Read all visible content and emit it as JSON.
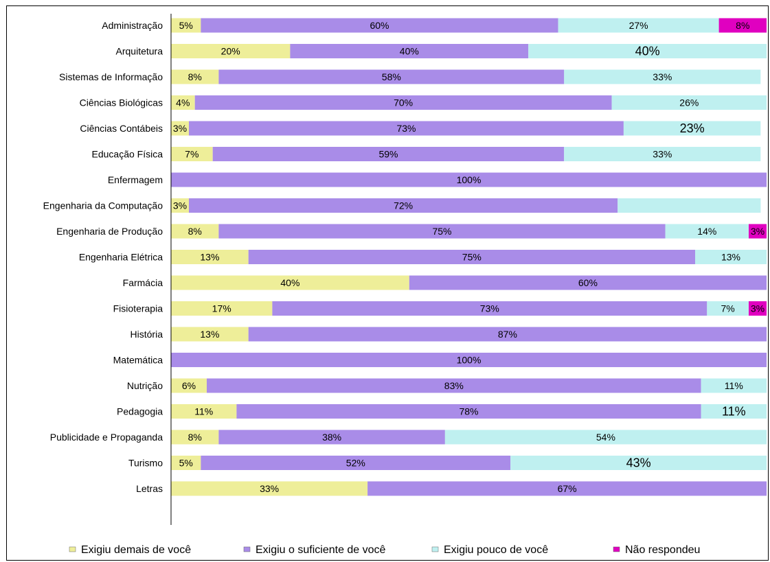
{
  "chart_data": {
    "type": "bar",
    "orientation": "horizontal",
    "stacked": true,
    "title": "",
    "xlabel": "",
    "ylabel": "",
    "xlim": [
      0,
      100
    ],
    "grid": false,
    "legend_position": "bottom",
    "categories": [
      "Administração",
      "Arquitetura",
      "Sistemas de Informação",
      "Ciências Biológicas",
      "Ciências Contábeis",
      "Educação Física",
      "Enfermagem",
      "Engenharia da Computação",
      "Engenharia de Produção",
      "Engenharia Elétrica",
      "Farmácia",
      "Fisioterapia",
      "História",
      "Matemática",
      "Nutrição",
      "Pedagogia",
      "Publicidade e Propaganda",
      "Turismo",
      "Letras"
    ],
    "series": [
      {
        "name": "Exigiu demais de você",
        "color": "#EEEE99",
        "values": [
          5,
          20,
          8,
          4,
          3,
          7,
          0,
          3,
          8,
          13,
          40,
          17,
          13,
          0,
          6,
          11,
          8,
          5,
          33
        ],
        "labels": [
          "5%",
          "20%",
          "8%",
          "4%",
          "3%",
          "7%",
          "",
          "3%",
          "8%",
          "13%",
          "40%",
          "17%",
          "13%",
          "",
          "6%",
          "11%",
          "8%",
          "5%",
          "33%"
        ]
      },
      {
        "name": "Exigiu o suficiente de você",
        "color": "#A98CE8",
        "values": [
          60,
          40,
          58,
          70,
          73,
          59,
          100,
          72,
          75,
          75,
          60,
          73,
          87,
          100,
          83,
          78,
          38,
          52,
          67
        ],
        "labels": [
          "60%",
          "40%",
          "58%",
          "70%",
          "73%",
          "59%",
          "100%",
          "72%",
          "75%",
          "75%",
          "60%",
          "73%",
          "87%",
          "100%",
          "83%",
          "78%",
          "38%",
          "52%",
          "67%"
        ]
      },
      {
        "name": "Exigiu pouco de você",
        "color": "#BFF0F0",
        "values": [
          27,
          40,
          33,
          26,
          23,
          33,
          0,
          24,
          14,
          13,
          0,
          7,
          0,
          0,
          11,
          11,
          54,
          43,
          0
        ],
        "labels": [
          "27%",
          "40%",
          "33%",
          "26%",
          "23%",
          "33%",
          "",
          "",
          "14%",
          "13%",
          "",
          "7%",
          "",
          "",
          "11%",
          "11%",
          "54%",
          "43%",
          ""
        ]
      },
      {
        "name": "Não respondeu",
        "color": "#E000C0",
        "values": [
          8,
          0,
          0,
          0,
          0,
          0,
          0,
          0,
          3,
          0,
          0,
          3,
          0,
          0,
          0,
          0,
          0,
          0,
          0
        ],
        "labels": [
          "8%",
          "",
          "",
          "",
          "",
          "",
          "",
          "",
          "3%",
          "",
          "",
          "3%",
          "",
          "",
          "",
          "",
          "",
          "",
          ""
        ]
      }
    ]
  }
}
